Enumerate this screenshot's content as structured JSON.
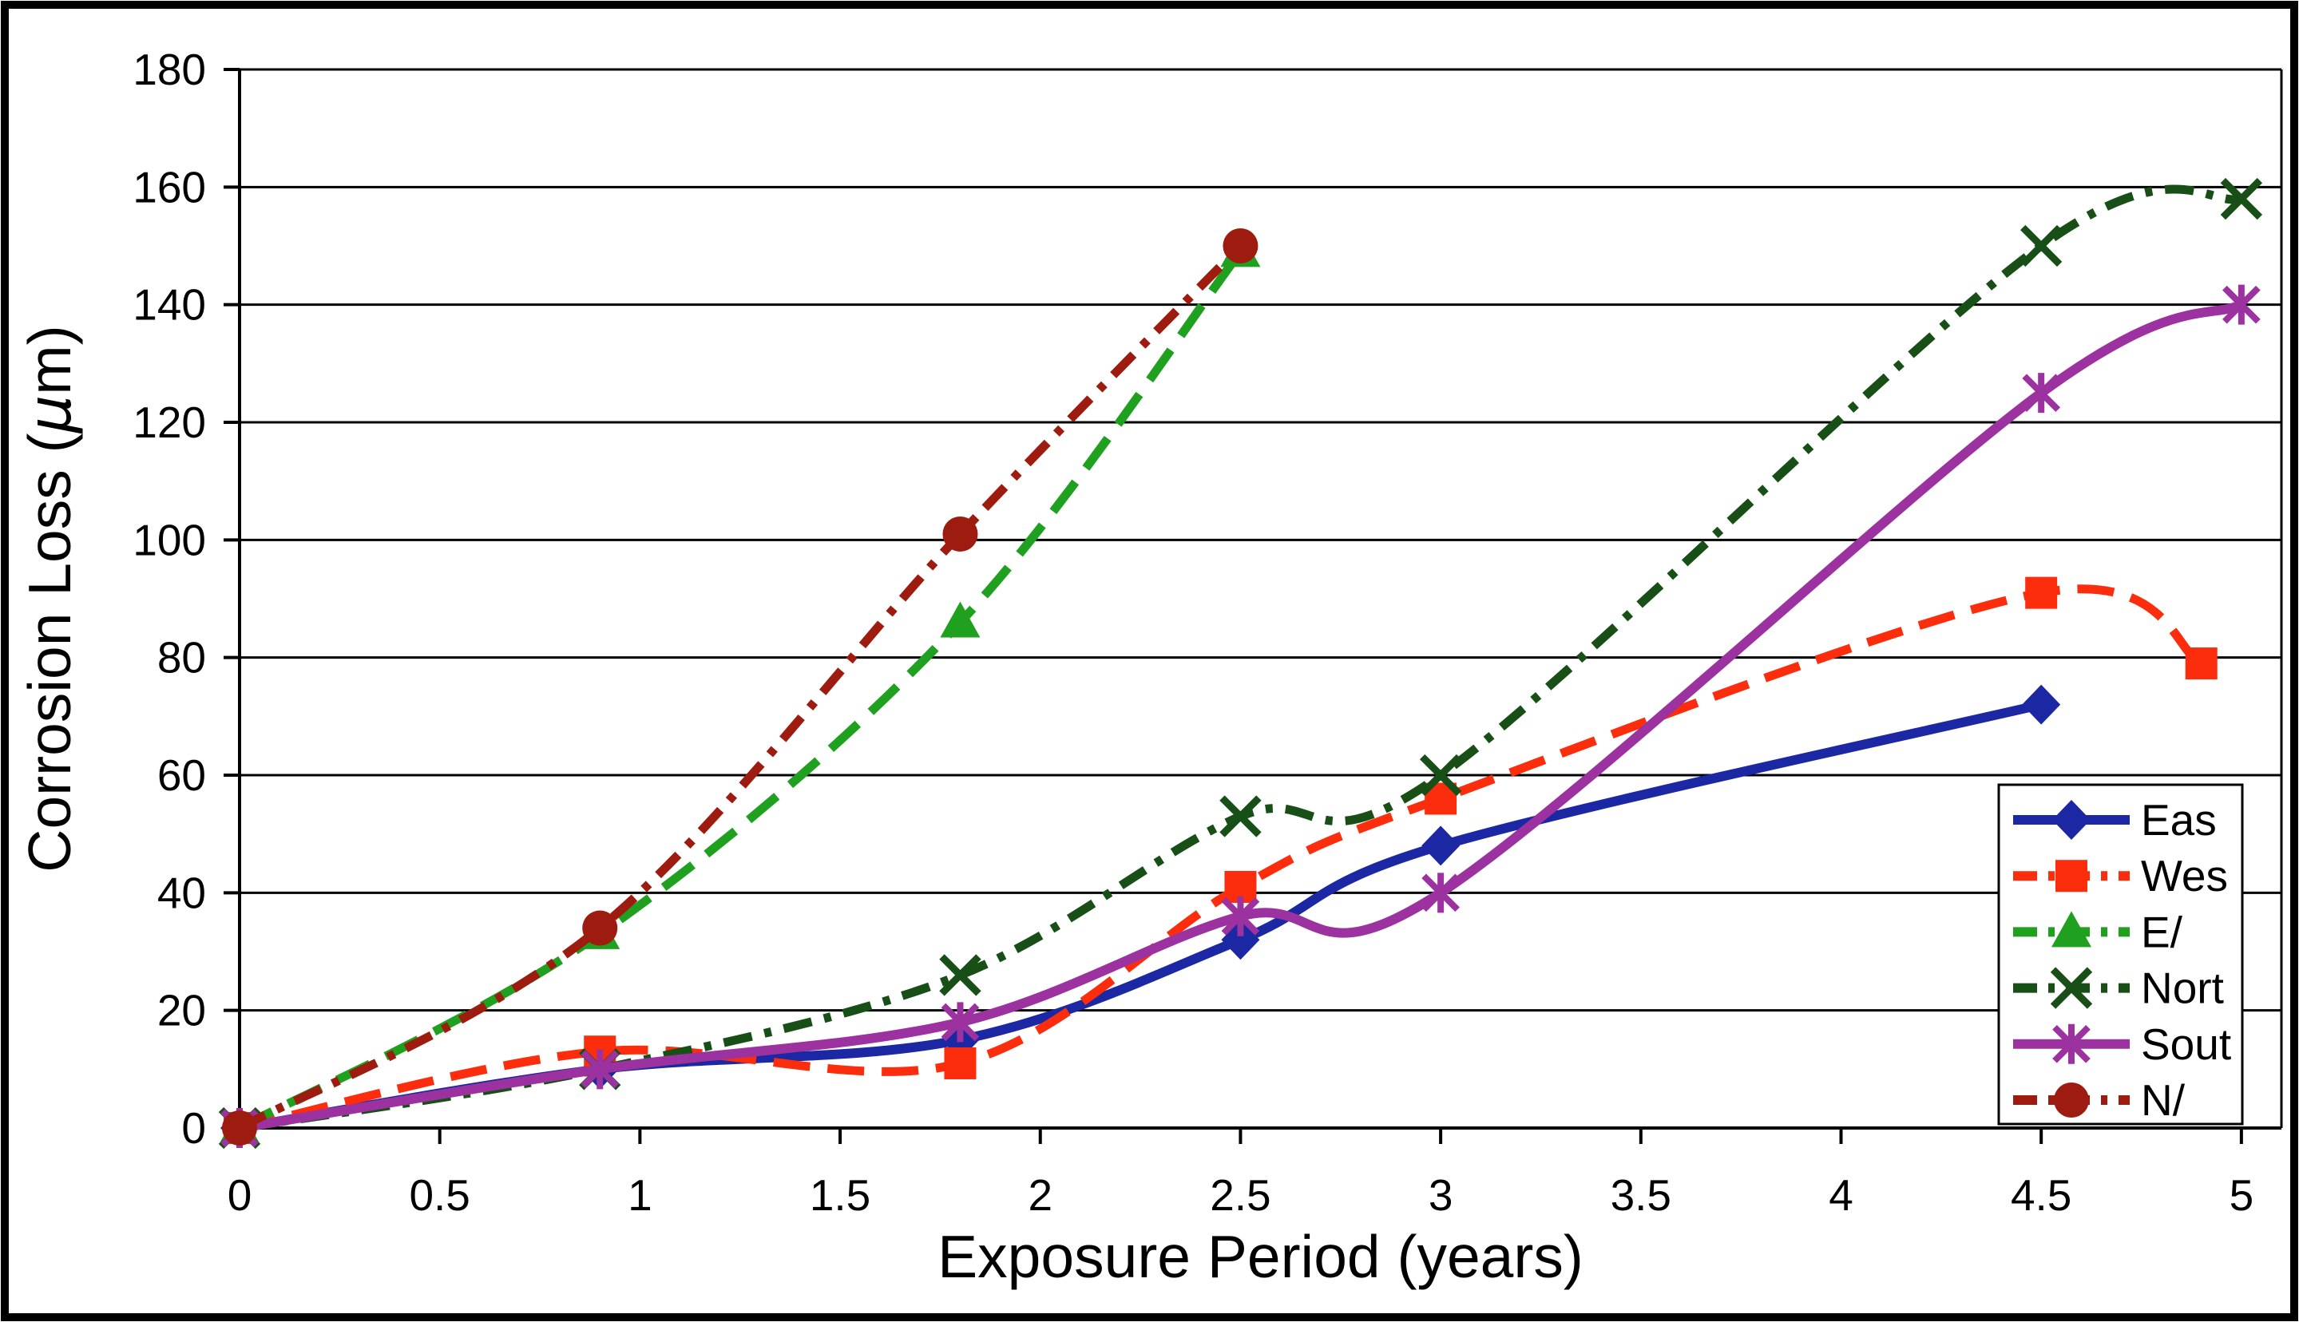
{
  "chart_data": {
    "type": "line",
    "title": "",
    "xlabel": "Exposure Period (years)",
    "ylabel": "Corrosion Loss (μm)",
    "xlim": [
      0,
      5.1
    ],
    "ylim": [
      0,
      180
    ],
    "xticks": [
      0,
      0.5,
      1,
      1.5,
      2,
      2.5,
      3,
      3.5,
      4,
      4.5,
      5
    ],
    "yticks": [
      0,
      20,
      40,
      60,
      80,
      100,
      120,
      140,
      160,
      180
    ],
    "grid": "horizontal",
    "grid_color": "#000000",
    "axis_color": "#000000",
    "background": "#ffffff",
    "legend_position": "inside-bottom-right",
    "smooth_lines": true,
    "series": [
      {
        "name": "Eas",
        "color": "#1B27A3",
        "line": "solid",
        "marker": "diamond",
        "points": [
          [
            0,
            0
          ],
          [
            0.9,
            10
          ],
          [
            1.8,
            15
          ],
          [
            2.5,
            32
          ],
          [
            3,
            48
          ],
          [
            4.5,
            72
          ]
        ]
      },
      {
        "name": "Wes",
        "color": "#FB2D0D",
        "line": "dash",
        "marker": "square",
        "points": [
          [
            0,
            0
          ],
          [
            0.9,
            13
          ],
          [
            1.8,
            11
          ],
          [
            2.5,
            41
          ],
          [
            3,
            56
          ],
          [
            4.5,
            91
          ],
          [
            4.9,
            79
          ]
        ]
      },
      {
        "name": "E/",
        "color": "#1FA11F",
        "line": "dash",
        "marker": "triangle",
        "points": [
          [
            0,
            0
          ],
          [
            0.9,
            33
          ],
          [
            1.8,
            86
          ],
          [
            2.5,
            149
          ]
        ]
      },
      {
        "name": "Nort",
        "color": "#174F17",
        "line": "dashdot",
        "marker": "x",
        "points": [
          [
            0,
            0
          ],
          [
            0.9,
            10
          ],
          [
            1.8,
            26
          ],
          [
            2.5,
            53
          ],
          [
            3,
            60
          ],
          [
            4.5,
            150
          ],
          [
            5,
            158
          ]
        ]
      },
      {
        "name": "Sout",
        "color": "#9C31A0",
        "line": "solid",
        "marker": "asterisk",
        "points": [
          [
            0,
            0
          ],
          [
            0.9,
            10
          ],
          [
            1.8,
            18
          ],
          [
            2.5,
            36
          ],
          [
            3,
            40
          ],
          [
            4.5,
            125
          ],
          [
            5,
            140
          ]
        ]
      },
      {
        "name": "N/",
        "color": "#9E1B10",
        "line": "dashdot",
        "marker": "circle",
        "points": [
          [
            0,
            0
          ],
          [
            0.9,
            34
          ],
          [
            1.8,
            101
          ],
          [
            2.5,
            150
          ]
        ]
      }
    ]
  }
}
